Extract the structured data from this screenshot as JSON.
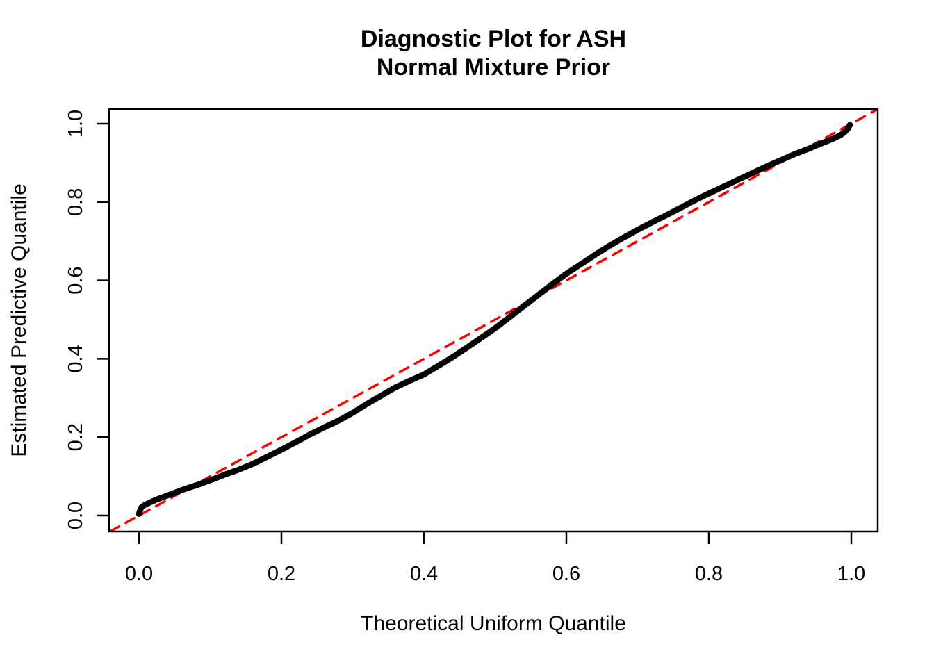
{
  "figure": {
    "title_line1": "Diagnostic Plot for ASH",
    "title_line2": "Normal Mixture Prior",
    "xlabel": "Theoretical Uniform Quantile",
    "ylabel": "Estimated Predictive Quantile",
    "background_color": "#ffffff",
    "axis_color": "#000000"
  },
  "chart_data": {
    "type": "line",
    "title": "Diagnostic Plot for ASH\nNormal Mixture Prior",
    "xlabel": "Theoretical Uniform Quantile",
    "ylabel": "Estimated Predictive Quantile",
    "xlim": [
      -0.04,
      1.04
    ],
    "ylim": [
      -0.04,
      1.04
    ],
    "xticks": [
      "0.0",
      "0.2",
      "0.4",
      "0.6",
      "0.8",
      "1.0"
    ],
    "yticks": [
      "0.0",
      "0.2",
      "0.4",
      "0.6",
      "0.8",
      "1.0"
    ],
    "grid": false,
    "legend_position": "none",
    "series": [
      {
        "name": "estimated-predictive-quantiles",
        "kind": "line",
        "color": "#000000",
        "linewidth": 8.5,
        "style": "solid",
        "points": [
          [
            0.0,
            0.004
          ],
          [
            0.002,
            0.016
          ],
          [
            0.004,
            0.022
          ],
          [
            0.008,
            0.027
          ],
          [
            0.015,
            0.033
          ],
          [
            0.025,
            0.041
          ],
          [
            0.04,
            0.051
          ],
          [
            0.06,
            0.065
          ],
          [
            0.08,
            0.077
          ],
          [
            0.1,
            0.09
          ],
          [
            0.12,
            0.104
          ],
          [
            0.14,
            0.117
          ],
          [
            0.16,
            0.132
          ],
          [
            0.18,
            0.15
          ],
          [
            0.2,
            0.168
          ],
          [
            0.22,
            0.187
          ],
          [
            0.24,
            0.207
          ],
          [
            0.26,
            0.225
          ],
          [
            0.28,
            0.242
          ],
          [
            0.3,
            0.262
          ],
          [
            0.32,
            0.285
          ],
          [
            0.34,
            0.306
          ],
          [
            0.36,
            0.327
          ],
          [
            0.38,
            0.344
          ],
          [
            0.4,
            0.36
          ],
          [
            0.42,
            0.382
          ],
          [
            0.44,
            0.404
          ],
          [
            0.46,
            0.428
          ],
          [
            0.48,
            0.453
          ],
          [
            0.5,
            0.478
          ],
          [
            0.52,
            0.506
          ],
          [
            0.54,
            0.534
          ],
          [
            0.56,
            0.562
          ],
          [
            0.58,
            0.59
          ],
          [
            0.6,
            0.617
          ],
          [
            0.62,
            0.641
          ],
          [
            0.64,
            0.665
          ],
          [
            0.66,
            0.688
          ],
          [
            0.68,
            0.709
          ],
          [
            0.7,
            0.729
          ],
          [
            0.72,
            0.748
          ],
          [
            0.74,
            0.766
          ],
          [
            0.76,
            0.785
          ],
          [
            0.78,
            0.804
          ],
          [
            0.8,
            0.822
          ],
          [
            0.82,
            0.839
          ],
          [
            0.84,
            0.856
          ],
          [
            0.86,
            0.873
          ],
          [
            0.88,
            0.89
          ],
          [
            0.9,
            0.906
          ],
          [
            0.92,
            0.922
          ],
          [
            0.94,
            0.936
          ],
          [
            0.96,
            0.951
          ],
          [
            0.975,
            0.962
          ],
          [
            0.985,
            0.971
          ],
          [
            0.991,
            0.979
          ],
          [
            0.995,
            0.987
          ],
          [
            0.997,
            0.993
          ],
          [
            0.998,
            0.997
          ]
        ]
      },
      {
        "name": "identity-reference-line",
        "kind": "line",
        "color": "#FF0000",
        "linewidth": 3.5,
        "style": "dashed",
        "points": [
          [
            -0.04,
            -0.04
          ],
          [
            1.04,
            1.04
          ]
        ]
      }
    ]
  }
}
